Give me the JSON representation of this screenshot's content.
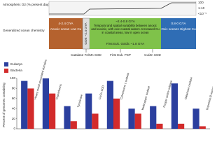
{
  "o2_panel": {
    "label": "Atmospheric O2 (% present day)",
    "levels": [
      "100",
      "1-10",
      "<10⁻⁵"
    ]
  },
  "ocean_panel": {
    "label": "Generalized ocean chemistry",
    "boxes": [
      {
        "title": "4-2.4 GYA",
        "text": "Anoxic ocean Low Cu"
      },
      {
        "title": "GOE ~2.4 GYA"
      },
      {
        "title": "~2.4-0.8 GYA",
        "text": "Temporal and spatial variability between anoxic and euxinic, with oxic coastal waters. Increased Cu in coastal areas, low in open ocean"
      },
      {
        "title": "0.8-0 GYA",
        "text": "Oxic oceans Highest Cu"
      }
    ],
    "inner_event": "First Euk. Oxidic ~1.8 GYA",
    "events": [
      "Catalase Fe/Mn SOD",
      "First Euk. PSP",
      "Cu/Zn SOD"
    ]
  },
  "chart_data": {
    "type": "bar",
    "y_label": "Percent of genomes containing",
    "categories": [
      "Heavy metal associated domains",
      "Cupredoxins",
      "Tyrosinase",
      "Cu/Zn SOD",
      "Cytochrome c oxidase",
      "Multicopper oxidase",
      "Copper amine oxidase",
      "Galactose oxidase",
      "Dopamine β-monooxygenase"
    ],
    "series": [
      {
        "name": "Eukarya",
        "color": "#2b3f9e",
        "values": [
          95,
          100,
          45,
          70,
          95,
          40,
          45,
          90,
          40
        ]
      },
      {
        "name": "Bacteria",
        "color": "#d22b2b",
        "values": [
          80,
          70,
          15,
          30,
          60,
          30,
          10,
          10,
          5
        ]
      }
    ],
    "ylim": [
      0,
      100
    ],
    "yticks": [
      0,
      20,
      40,
      60,
      80,
      100
    ],
    "legend": "top-left"
  }
}
